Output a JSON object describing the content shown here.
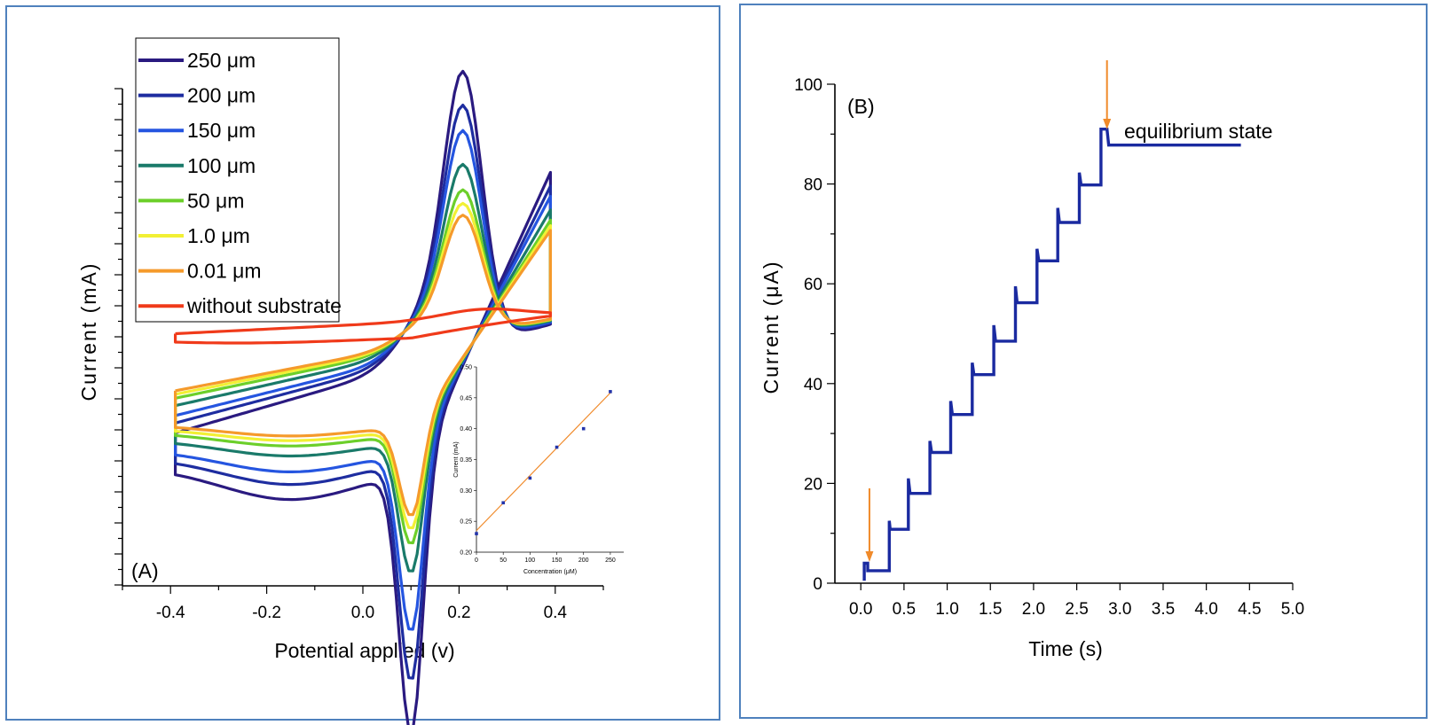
{
  "chart_data": [
    {
      "panel_label": "(A)",
      "type": "line",
      "xlabel": "Potential applied (v)",
      "ylabel": "Current (mA)",
      "xlim": [
        -0.5,
        0.5
      ],
      "xticks": [
        "-0.4",
        "-0.2",
        "0.0",
        "0.2",
        "0.4"
      ],
      "y_tick_labels_shown": false,
      "legend_position": "top-left",
      "colors": [
        "#2a1a80",
        "#1e2da0",
        "#2555e0",
        "#1a7a6a",
        "#6ccf2a",
        "#f2f034",
        "#f59a2b",
        "#f03a1a"
      ],
      "series": [
        {
          "name": "250 μm",
          "color": "#2a1a80",
          "peak_anodic": 1.5,
          "peak_cathodic": -1.9
        },
        {
          "name": "200 μm",
          "color": "#1e2da0",
          "peak_anodic": 1.3,
          "peak_cathodic": -1.6
        },
        {
          "name": "150 μm",
          "color": "#2555e0",
          "peak_anodic": 1.15,
          "peak_cathodic": -1.3
        },
        {
          "name": "100 μm",
          "color": "#1a7a6a",
          "peak_anodic": 0.95,
          "peak_cathodic": -0.95
        },
        {
          "name": "50 μm",
          "color": "#6ccf2a",
          "peak_anodic": 0.8,
          "peak_cathodic": -0.8
        },
        {
          "name": "1.0 μm",
          "color": "#f2f034",
          "peak_anodic": 0.72,
          "peak_cathodic": -0.72
        },
        {
          "name": "0.01 μm",
          "color": "#f59a2b",
          "peak_anodic": 0.65,
          "peak_cathodic": -0.65
        },
        {
          "name": "without substrate",
          "color": "#f03a1a",
          "peak_anodic": 0.15,
          "peak_cathodic": 0.0
        }
      ],
      "inset": {
        "type": "scatter",
        "xlabel": "Concentration (μM)",
        "ylabel": "Current (mA)",
        "xlim": [
          0,
          275
        ],
        "ylim": [
          0.2,
          0.5
        ],
        "xticks": [
          "0",
          "50",
          "100",
          "150",
          "200",
          "250"
        ],
        "yticks": [
          "0.20",
          "0.25",
          "0.30",
          "0.35",
          "0.40",
          "0.45",
          "0.50"
        ],
        "points": [
          {
            "x": 0,
            "y": 0.23
          },
          {
            "x": 50,
            "y": 0.28
          },
          {
            "x": 100,
            "y": 0.32
          },
          {
            "x": 150,
            "y": 0.37
          },
          {
            "x": 200,
            "y": 0.4
          },
          {
            "x": 250,
            "y": 0.46
          }
        ],
        "fit_line": {
          "x": [
            0,
            250
          ],
          "y": [
            0.235,
            0.458
          ]
        },
        "point_color": "#2233aa",
        "line_color": "#f08a2a"
      }
    },
    {
      "panel_label": "(B)",
      "type": "line",
      "xlabel": "Time (s)",
      "ylabel": "Current (μA)",
      "xlim": [
        -0.3,
        5.0
      ],
      "ylim": [
        0,
        100
      ],
      "xticks": [
        "0.0",
        "0.5",
        "1.0",
        "1.5",
        "2.0",
        "2.5",
        "3.0",
        "3.5",
        "4.0",
        "4.5",
        "5.0"
      ],
      "yticks": [
        "0",
        "20",
        "40",
        "60",
        "80",
        "100"
      ],
      "annotation": "equilibrium state",
      "line_color": "#1a2aa0",
      "arrow_color": "#f08a2a",
      "arrows_at_x": [
        0.1,
        2.85
      ],
      "series": [
        {
          "points": [
            [
              0.04,
              0.5
            ],
            [
              0.04,
              4
            ],
            [
              0.08,
              4
            ],
            [
              0.08,
              2.5
            ],
            [
              0.33,
              2.5
            ],
            [
              0.33,
              12.5
            ],
            [
              0.34,
              10.8
            ],
            [
              0.55,
              10.8
            ],
            [
              0.55,
              21
            ],
            [
              0.57,
              18
            ],
            [
              0.8,
              18
            ],
            [
              0.8,
              28.5
            ],
            [
              0.82,
              26.2
            ],
            [
              1.04,
              26.2
            ],
            [
              1.04,
              36.5
            ],
            [
              1.06,
              33.8
            ],
            [
              1.29,
              33.8
            ],
            [
              1.29,
              44.2
            ],
            [
              1.31,
              41.8
            ],
            [
              1.54,
              41.8
            ],
            [
              1.54,
              51.7
            ],
            [
              1.56,
              48.5
            ],
            [
              1.79,
              48.5
            ],
            [
              1.79,
              59.5
            ],
            [
              1.81,
              56.2
            ],
            [
              2.04,
              56.2
            ],
            [
              2.04,
              67
            ],
            [
              2.06,
              64.6
            ],
            [
              2.28,
              64.6
            ],
            [
              2.28,
              75.2
            ],
            [
              2.3,
              72.3
            ],
            [
              2.53,
              72.3
            ],
            [
              2.53,
              82.3
            ],
            [
              2.55,
              79.8
            ],
            [
              2.78,
              79.8
            ],
            [
              2.78,
              91
            ],
            [
              2.85,
              91
            ],
            [
              2.87,
              87.8
            ],
            [
              4.4,
              87.8
            ]
          ]
        }
      ]
    }
  ]
}
